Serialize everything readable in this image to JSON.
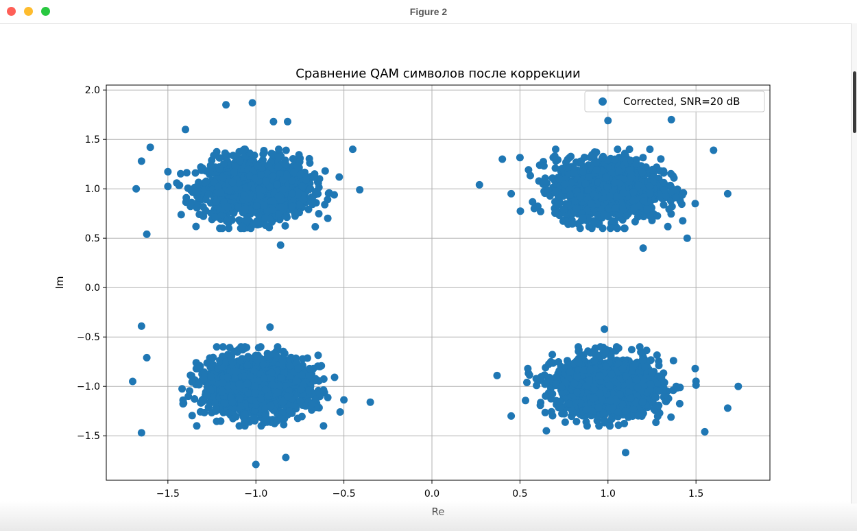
{
  "window": {
    "title": "Figure 2",
    "buttons": [
      "close",
      "minimize",
      "zoom"
    ]
  },
  "chart_data": {
    "type": "scatter",
    "title": "Сравнение QAM символов после коррекции",
    "xlabel": "Re",
    "ylabel": "Im",
    "xlim": [
      -1.85,
      1.92
    ],
    "ylim": [
      -1.95,
      2.05
    ],
    "xticks": [
      -1.5,
      -1.0,
      -0.5,
      0.0,
      0.5,
      1.0,
      1.5
    ],
    "xtick_labels": [
      "−1.5",
      "−1.0",
      "−0.5",
      "0.0",
      "0.5",
      "1.0",
      "1.5"
    ],
    "yticks": [
      -1.5,
      -1.0,
      -0.5,
      0.0,
      0.5,
      1.0,
      1.5,
      2.0
    ],
    "ytick_labels": [
      "−1.5",
      "−1.0",
      "−0.5",
      "0.0",
      "0.5",
      "1.0",
      "1.5",
      "2.0"
    ],
    "grid": true,
    "legend_position": "top-right",
    "series": [
      {
        "name": "Corrected, SNR=20 dB",
        "color": "#1f77b4",
        "clusters": [
          {
            "center": [
              -1.0,
              1.0
            ],
            "std_x": 0.15,
            "std_y": 0.15
          },
          {
            "center": [
              1.0,
              1.0
            ],
            "std_x": 0.15,
            "std_y": 0.15
          },
          {
            "center": [
              -1.0,
              -1.0
            ],
            "std_x": 0.15,
            "std_y": 0.15
          },
          {
            "center": [
              1.0,
              -1.0
            ],
            "std_x": 0.15,
            "std_y": 0.15
          }
        ],
        "outliers": [
          [
            -1.02,
            1.87
          ],
          [
            -1.17,
            1.85
          ],
          [
            -1.4,
            1.6
          ],
          [
            -1.6,
            1.42
          ],
          [
            -1.65,
            1.28
          ],
          [
            -1.68,
            1.0
          ],
          [
            -1.62,
            0.54
          ],
          [
            -0.9,
            1.68
          ],
          [
            -0.82,
            1.68
          ],
          [
            -0.45,
            1.4
          ],
          [
            -0.41,
            0.99
          ],
          [
            -0.86,
            0.43
          ],
          [
            0.27,
            1.04
          ],
          [
            0.4,
            1.3
          ],
          [
            0.45,
            0.95
          ],
          [
            1.0,
            1.69
          ],
          [
            1.36,
            1.7
          ],
          [
            1.6,
            1.39
          ],
          [
            1.68,
            0.95
          ],
          [
            1.2,
            0.4
          ],
          [
            1.45,
            0.5
          ],
          [
            -1.65,
            -0.39
          ],
          [
            -1.7,
            -0.95
          ],
          [
            -1.62,
            -0.71
          ],
          [
            -1.65,
            -1.47
          ],
          [
            -0.92,
            -0.4
          ],
          [
            -0.35,
            -1.16
          ],
          [
            -1.0,
            -1.79
          ],
          [
            -0.83,
            -1.72
          ],
          [
            0.37,
            -0.89
          ],
          [
            0.45,
            -1.3
          ],
          [
            0.65,
            -1.45
          ],
          [
            0.98,
            -0.42
          ],
          [
            1.74,
            -1.0
          ],
          [
            1.68,
            -1.22
          ],
          [
            1.55,
            -1.46
          ],
          [
            1.1,
            -1.67
          ]
        ]
      }
    ]
  }
}
